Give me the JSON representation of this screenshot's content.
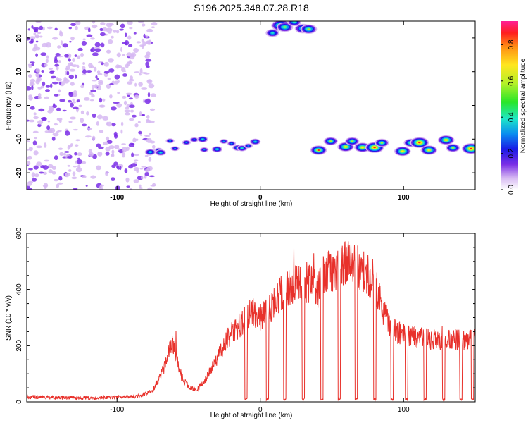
{
  "title": "S196.2025.348.07.28.R18",
  "chart_data": [
    {
      "type": "heatmap",
      "name": "spectrogram",
      "xlabel": "Height of straight line (km)",
      "ylabel": "Frequency (Hz)",
      "xlim": [
        -163,
        150
      ],
      "ylim": [
        -25,
        25
      ],
      "xticks": [
        "-100",
        "0",
        "100"
      ],
      "yticks": [
        "20",
        "10",
        "0",
        "-10",
        "-20"
      ],
      "colorbar": {
        "label": "Normalized spectral amplitude",
        "range": [
          0.0,
          0.93
        ],
        "ticks": [
          "0.0",
          "0.2",
          "0.4",
          "0.6",
          "0.8"
        ]
      },
      "features": [
        {
          "description": "broadband noise",
          "x_range": [
            -163,
            -80
          ],
          "freq_range": [
            -25,
            25
          ],
          "amplitude": 0.1
        },
        {
          "description": "line near -12 Hz",
          "x_range": [
            -80,
            0
          ],
          "freq": -12,
          "amplitude": 0.4
        },
        {
          "description": "high-frequency burst",
          "x_range": [
            8,
            35
          ],
          "freq": 23,
          "amplitude": 0.8
        },
        {
          "description": "line near -12 Hz",
          "x_range": [
            35,
            150
          ],
          "freq": -12,
          "amplitude": 0.85
        }
      ]
    },
    {
      "type": "line",
      "name": "snr",
      "xlabel": "Height of straight line (km)",
      "ylabel": "SNR (10 * v/v)",
      "xlim": [
        -163,
        150
      ],
      "ylim": [
        0,
        600
      ],
      "xticks": [
        "-100",
        "0",
        "100"
      ],
      "yticks": [
        "0",
        "200",
        "400",
        "600"
      ],
      "color": "#e8312b",
      "series": [
        {
          "name": "SNR",
          "x": [
            -163,
            -140,
            -120,
            -100,
            -85,
            -75,
            -68,
            -62,
            -58,
            -55,
            -50,
            -45,
            -38,
            -30,
            -22,
            -15,
            -10,
            -5,
            0,
            5,
            10,
            15,
            20,
            25,
            30,
            35,
            40,
            45,
            50,
            55,
            60,
            65,
            70,
            75,
            80,
            85,
            90,
            95,
            100,
            110,
            120,
            130,
            140,
            150
          ],
          "y": [
            18,
            15,
            15,
            16,
            20,
            40,
            110,
            210,
            150,
            90,
            55,
            40,
            80,
            160,
            230,
            270,
            300,
            320,
            300,
            320,
            350,
            390,
            410,
            420,
            430,
            420,
            400,
            460,
            470,
            480,
            490,
            480,
            470,
            460,
            420,
            330,
            280,
            250,
            240,
            230,
            220,
            225,
            220,
            225
          ]
        }
      ],
      "dropouts_x": [
        -10,
        5,
        17,
        30,
        43,
        55,
        67,
        80,
        92,
        102,
        115,
        128,
        140,
        148
      ]
    }
  ]
}
